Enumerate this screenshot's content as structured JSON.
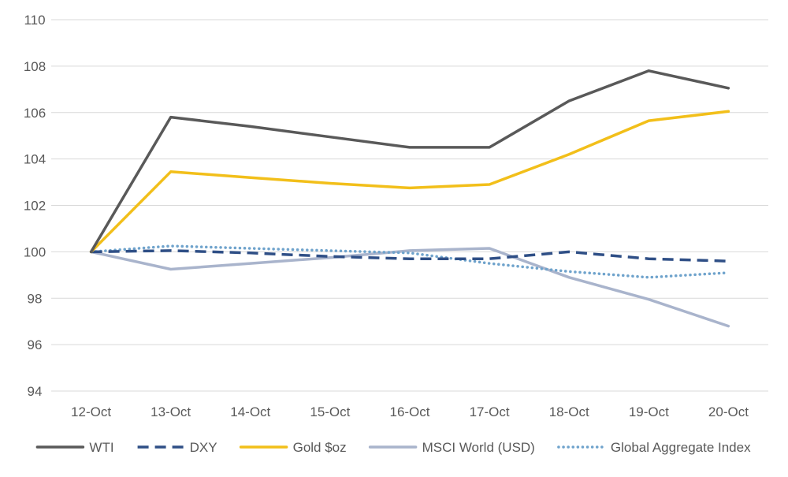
{
  "chart_data": {
    "type": "line",
    "categories": [
      "12-Oct",
      "13-Oct",
      "14-Oct",
      "15-Oct",
      "16-Oct",
      "17-Oct",
      "18-Oct",
      "19-Oct",
      "20-Oct"
    ],
    "ylim": [
      94,
      110
    ],
    "yticks": [
      94,
      96,
      98,
      100,
      102,
      104,
      106,
      108,
      110
    ],
    "grid": "horizontal",
    "legend_position": "bottom",
    "title": "",
    "xlabel": "",
    "ylabel": "",
    "series": [
      {
        "name": "WTI",
        "color": "#595959",
        "dash": "solid",
        "values": [
          100,
          105.8,
          105.4,
          104.95,
          104.5,
          104.5,
          106.5,
          107.8,
          107.05
        ]
      },
      {
        "name": "DXY",
        "color": "#2F4F86",
        "dash": "dashed",
        "values": [
          100,
          100.05,
          99.95,
          99.8,
          99.7,
          99.7,
          100.0,
          99.7,
          99.6
        ]
      },
      {
        "name": "Gold $oz",
        "color": "#F2BF1A",
        "dash": "solid",
        "values": [
          100,
          103.45,
          103.2,
          102.95,
          102.75,
          102.9,
          104.2,
          105.65,
          106.05
        ]
      },
      {
        "name": "MSCI World (USD)",
        "color": "#A9B4CC",
        "dash": "solid",
        "values": [
          100,
          99.25,
          99.5,
          99.75,
          100.05,
          100.15,
          98.9,
          97.95,
          96.8
        ]
      },
      {
        "name": "Global Aggregate Index",
        "color": "#6FA3CC",
        "dash": "dotted",
        "values": [
          100,
          100.25,
          100.15,
          100.05,
          99.95,
          99.5,
          99.15,
          98.9,
          99.1
        ]
      }
    ]
  }
}
